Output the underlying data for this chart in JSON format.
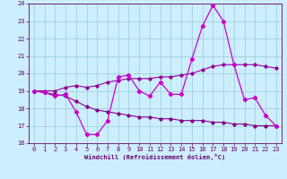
{
  "x": [
    0,
    1,
    2,
    3,
    4,
    5,
    6,
    7,
    8,
    9,
    10,
    11,
    12,
    13,
    14,
    15,
    16,
    17,
    18,
    19,
    20,
    21,
    22,
    23
  ],
  "line_actual": [
    19.0,
    18.9,
    18.7,
    18.8,
    17.8,
    16.5,
    16.5,
    17.3,
    19.8,
    19.9,
    19.0,
    18.7,
    19.5,
    18.8,
    18.8,
    20.8,
    22.7,
    23.9,
    23.0,
    20.5,
    18.5,
    18.6,
    17.6,
    17.0
  ],
  "line_smooth_hi": [
    19.0,
    19.0,
    19.0,
    19.2,
    19.3,
    19.2,
    19.3,
    19.5,
    19.6,
    19.7,
    19.7,
    19.7,
    19.8,
    19.8,
    19.9,
    20.0,
    20.2,
    20.4,
    20.5,
    20.5,
    20.5,
    20.5,
    20.4,
    20.3
  ],
  "line_smooth_lo": [
    19.0,
    18.9,
    18.8,
    18.7,
    18.4,
    18.1,
    17.9,
    17.8,
    17.7,
    17.6,
    17.5,
    17.5,
    17.4,
    17.4,
    17.3,
    17.3,
    17.3,
    17.2,
    17.2,
    17.1,
    17.1,
    17.0,
    17.0,
    17.0
  ],
  "line_color_actual": "#cc00cc",
  "line_color_hi": "#990099",
  "line_color_lo": "#880088",
  "bg_color": "#cceeff",
  "grid_color": "#99cccc",
  "text_color": "#660066",
  "xlabel": "Windchill (Refroidissement éolien,°C)",
  "ylim": [
    16,
    24
  ],
  "xlim": [
    -0.5,
    23.5
  ],
  "yticks": [
    16,
    17,
    18,
    19,
    20,
    21,
    22,
    23,
    24
  ],
  "xticks": [
    0,
    1,
    2,
    3,
    4,
    5,
    6,
    7,
    8,
    9,
    10,
    11,
    12,
    13,
    14,
    15,
    16,
    17,
    18,
    19,
    20,
    21,
    22,
    23
  ]
}
